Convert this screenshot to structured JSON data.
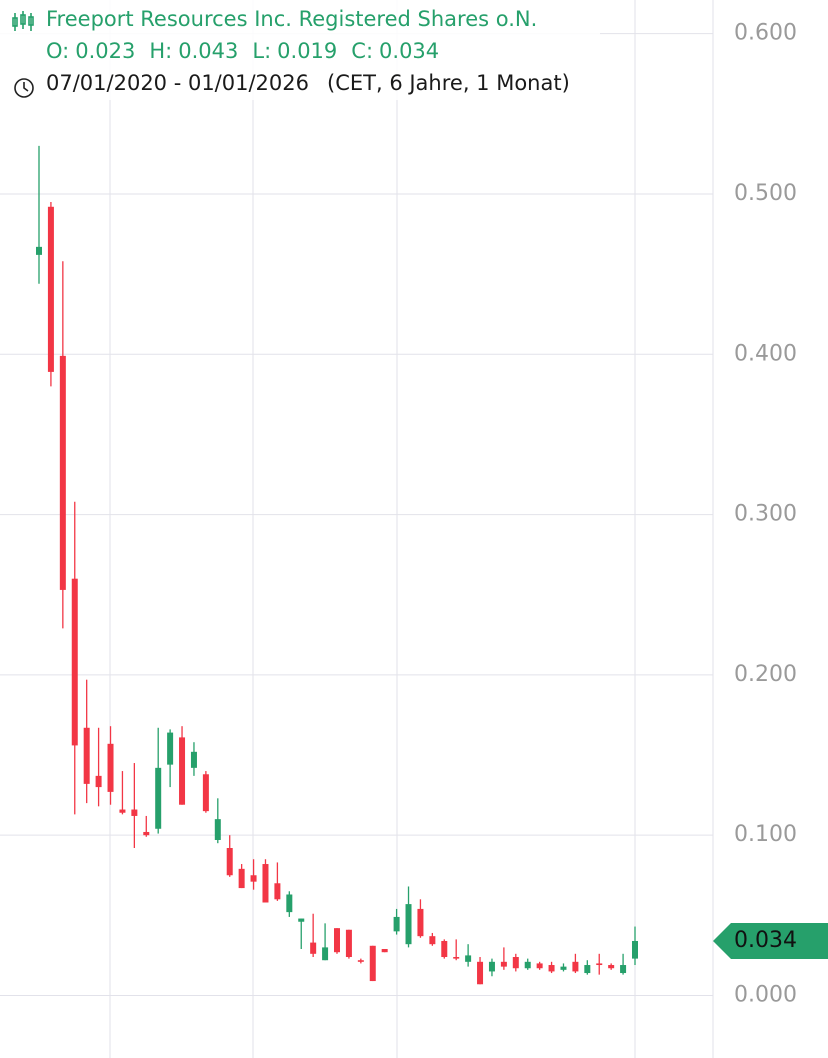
{
  "chart_data": {
    "type": "candlestick",
    "title": "Freeport Resources Inc. Registered Shares o.N.",
    "ohlc_legend": [
      {
        "label": "O:",
        "value": 0.023
      },
      {
        "label": "H:",
        "value": 0.043
      },
      {
        "label": "L:",
        "value": 0.019
      },
      {
        "label": "C:",
        "value": 0.034
      }
    ],
    "date_range": "07/01/2020 - 01/01/2026",
    "period_note": "(CET, 6 Jahre, 1 Monat)",
    "up_color": "#26a06b",
    "down_color": "#f23645",
    "grid": true,
    "ylim": [
      -0.039,
      0.621
    ],
    "yticks": [
      {
        "value": 0,
        "label": "0.000"
      },
      {
        "value": 0.1,
        "label": "0.100"
      },
      {
        "value": 0.2,
        "label": "0.200"
      },
      {
        "value": 0.3,
        "label": "0.300"
      },
      {
        "value": 0.4,
        "label": "0.400"
      },
      {
        "value": 0.5,
        "label": "0.500"
      },
      {
        "value": 0.6,
        "label": "0.600"
      }
    ],
    "open": [
      0.462,
      0.492,
      0.399,
      0.26,
      0.167,
      0.137,
      0.157,
      0.116,
      0.116,
      0.102,
      0.104,
      0.144,
      0.161,
      0.142,
      0.138,
      0.097,
      0.092,
      0.079,
      0.075,
      0.082,
      0.07,
      0.052,
      0.046,
      0.033,
      0.022,
      0.042,
      0.041,
      0.022,
      0.031,
      0.029,
      0.04,
      0.032,
      0.054,
      0.037,
      0.034,
      0.024,
      0.021,
      0.021,
      0.015,
      0.021,
      0.024,
      0.017,
      0.02,
      0.019,
      0.016,
      0.021,
      0.014,
      0.02,
      0.019,
      0.014,
      0.023
    ],
    "high": [
      0.53,
      0.495,
      0.458,
      0.308,
      0.197,
      0.167,
      0.168,
      0.14,
      0.145,
      0.112,
      0.167,
      0.166,
      0.168,
      0.158,
      0.14,
      0.123,
      0.1,
      0.082,
      0.085,
      0.085,
      0.083,
      0.065,
      0.048,
      0.051,
      0.045,
      0.042,
      0.041,
      0.023,
      0.031,
      0.029,
      0.054,
      0.068,
      0.06,
      0.039,
      0.035,
      0.035,
      0.032,
      0.024,
      0.023,
      0.03,
      0.026,
      0.023,
      0.021,
      0.021,
      0.02,
      0.026,
      0.022,
      0.026,
      0.02,
      0.026,
      0.043
    ],
    "low": [
      0.444,
      0.38,
      0.229,
      0.113,
      0.12,
      0.118,
      0.119,
      0.113,
      0.092,
      0.099,
      0.101,
      0.13,
      0.119,
      0.137,
      0.114,
      0.095,
      0.074,
      0.067,
      0.066,
      0.058,
      0.059,
      0.049,
      0.029,
      0.024,
      0.022,
      0.026,
      0.023,
      0.02,
      0.009,
      0.027,
      0.038,
      0.03,
      0.036,
      0.031,
      0.023,
      0.022,
      0.018,
      0.007,
      0.012,
      0.016,
      0.015,
      0.016,
      0.016,
      0.014,
      0.015,
      0.014,
      0.013,
      0.013,
      0.016,
      0.013,
      0.019
    ],
    "close": [
      0.467,
      0.389,
      0.253,
      0.156,
      0.132,
      0.13,
      0.127,
      0.114,
      0.112,
      0.1,
      0.142,
      0.164,
      0.119,
      0.152,
      0.115,
      0.11,
      0.075,
      0.067,
      0.071,
      0.058,
      0.06,
      0.063,
      0.048,
      0.026,
      0.03,
      0.027,
      0.024,
      0.021,
      0.009,
      0.027,
      0.049,
      0.057,
      0.037,
      0.032,
      0.024,
      0.023,
      0.025,
      0.007,
      0.021,
      0.018,
      0.017,
      0.021,
      0.017,
      0.015,
      0.018,
      0.015,
      0.019,
      0.019,
      0.017,
      0.019,
      0.034
    ]
  }
}
